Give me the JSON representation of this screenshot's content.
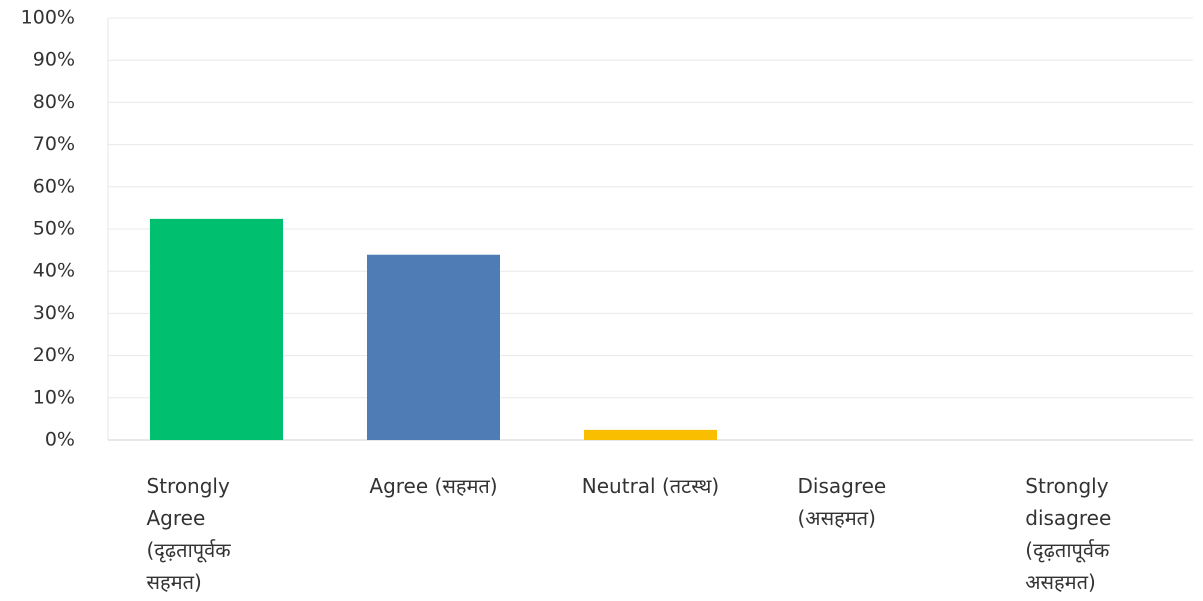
{
  "chart_data": {
    "type": "bar",
    "categories": [
      "Strongly Agree (दृढ़तापूर्वक सहमत)",
      "Agree (सहमत)",
      "Neutral (तटस्थ)",
      "Disagree (असहमत)",
      "Strongly disagree (दृढ़तापूर्वक असहमत)"
    ],
    "values": [
      52.4,
      43.9,
      2.4,
      0,
      0
    ],
    "colors": [
      "#00bf6f",
      "#507cb6",
      "#f9be00",
      "#6bc8cd",
      "#ff8b4f"
    ],
    "ylim": [
      0,
      100
    ],
    "yticks": [
      {
        "value": 0,
        "label": "0%"
      },
      {
        "value": 10,
        "label": "10%"
      },
      {
        "value": 20,
        "label": "20%"
      },
      {
        "value": 30,
        "label": "30%"
      },
      {
        "value": 40,
        "label": "40%"
      },
      {
        "value": 50,
        "label": "50%"
      },
      {
        "value": 60,
        "label": "60%"
      },
      {
        "value": 70,
        "label": "70%"
      },
      {
        "value": 80,
        "label": "80%"
      },
      {
        "value": 90,
        "label": "90%"
      },
      {
        "value": 100,
        "label": "100%"
      }
    ],
    "grid": true
  }
}
